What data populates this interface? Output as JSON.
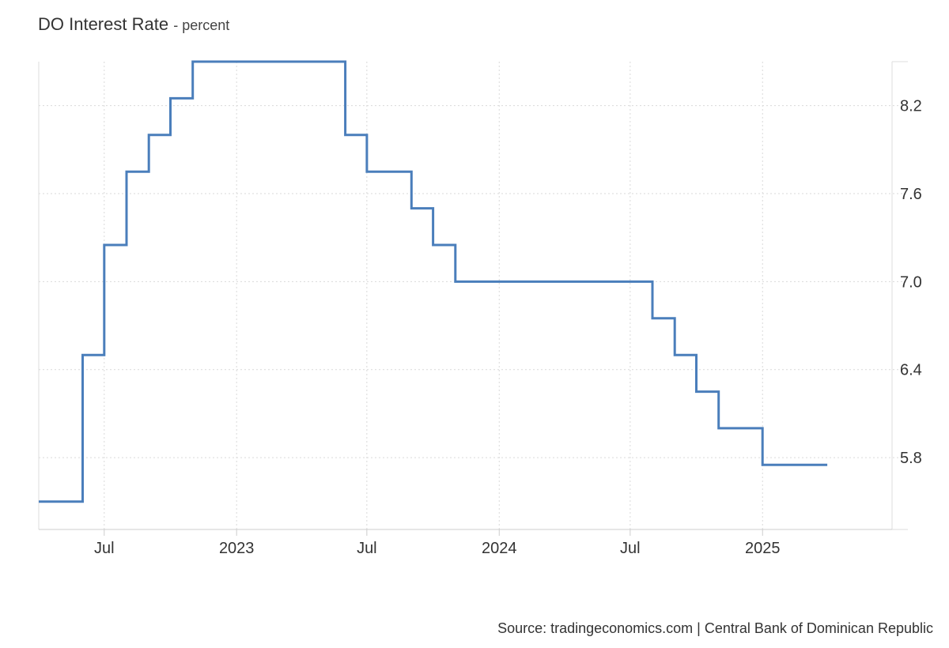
{
  "title": "DO Interest Rate",
  "unit": "percent",
  "source": "Source: tradingeconomics.com | Central Bank of Dominican Republic",
  "chart_data": {
    "type": "line",
    "step": true,
    "title": "DO Interest Rate",
    "ylabel": "",
    "xlabel": "",
    "ylim": [
      5.31,
      8.5
    ],
    "xlim": [
      "2022-04-01",
      "2025-06-30"
    ],
    "y_ticks": [
      5.8,
      6.4,
      7.0,
      7.6,
      8.2
    ],
    "y_tick_labels": [
      "5.8",
      "6.4",
      "7.0",
      "7.6",
      "8.2"
    ],
    "x_ticks": [
      "2022-07-01",
      "2023-01-01",
      "2023-07-01",
      "2024-01-01",
      "2024-07-01",
      "2025-01-01"
    ],
    "x_tick_labels": [
      "Jul",
      "2023",
      "Jul",
      "2024",
      "Jul",
      "2025"
    ],
    "grid": true,
    "color": "#4a7ebb",
    "series": [
      {
        "x": [
          "2022-04-01",
          "2022-06-01",
          "2022-07-01",
          "2022-08-01",
          "2022-09-01",
          "2022-10-01",
          "2022-11-01",
          "2023-06-01",
          "2023-07-01",
          "2023-09-01",
          "2023-10-01",
          "2023-11-01",
          "2023-12-01",
          "2024-08-01",
          "2024-09-01",
          "2024-10-01",
          "2024-11-01",
          "2024-12-01",
          "2025-01-01",
          "2025-04-01"
        ],
        "values": [
          5.5,
          6.5,
          7.25,
          7.75,
          8.0,
          8.25,
          8.5,
          8.0,
          7.75,
          7.5,
          7.25,
          7.0,
          7.0,
          6.75,
          6.5,
          6.25,
          6.0,
          6.0,
          5.75,
          5.75
        ]
      }
    ]
  }
}
